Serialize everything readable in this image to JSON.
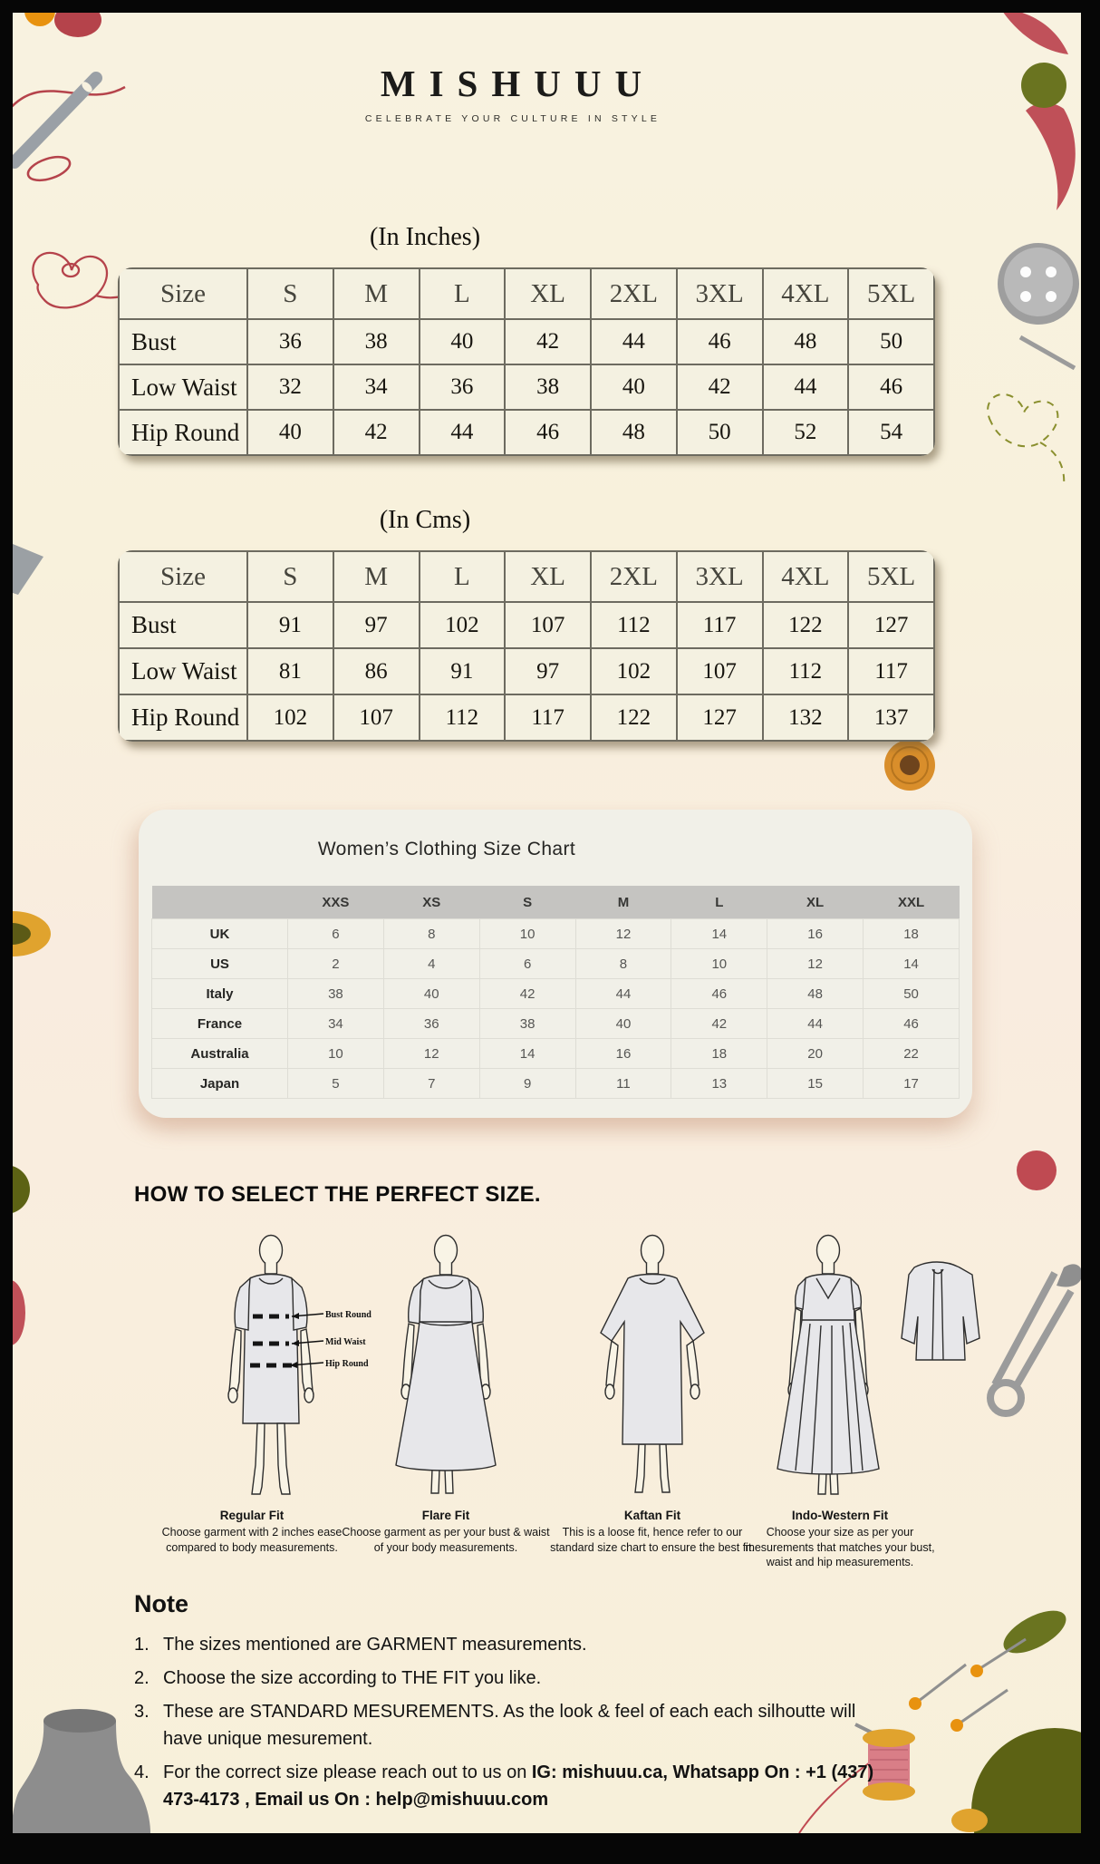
{
  "brand": {
    "name": "MISHUUU",
    "tagline": "CELEBRATE YOUR CULTURE IN STYLE"
  },
  "inches_table": {
    "title": "(In Inches)",
    "header": [
      "Size",
      "S",
      "M",
      "L",
      "XL",
      "2XL",
      "3XL",
      "4XL",
      "5XL"
    ],
    "rows": [
      {
        "label": "Bust",
        "values": [
          "36",
          "38",
          "40",
          "42",
          "44",
          "46",
          "48",
          "50"
        ]
      },
      {
        "label": "Low Waist",
        "values": [
          "32",
          "34",
          "36",
          "38",
          "40",
          "42",
          "44",
          "46"
        ]
      },
      {
        "label": "Hip Round",
        "values": [
          "40",
          "42",
          "44",
          "46",
          "48",
          "50",
          "52",
          "54"
        ]
      }
    ]
  },
  "cms_table": {
    "title": "(In Cms)",
    "header": [
      "Size",
      "S",
      "M",
      "L",
      "XL",
      "2XL",
      "3XL",
      "4XL",
      "5XL"
    ],
    "rows": [
      {
        "label": "Bust",
        "values": [
          "91",
          "97",
          "102",
          "107",
          "112",
          "117",
          "122",
          "127"
        ]
      },
      {
        "label": "Low Waist",
        "values": [
          "81",
          "86",
          "91",
          "97",
          "102",
          "107",
          "112",
          "117"
        ]
      },
      {
        "label": "Hip Round",
        "values": [
          "102",
          "107",
          "112",
          "117",
          "122",
          "127",
          "132",
          "137"
        ]
      }
    ]
  },
  "women_chart": {
    "title": "Women’s Clothing Size Chart",
    "header": [
      "",
      "XXS",
      "XS",
      "S",
      "M",
      "L",
      "XL",
      "XXL"
    ],
    "rows": [
      {
        "label": "UK",
        "values": [
          "6",
          "8",
          "10",
          "12",
          "14",
          "16",
          "18"
        ]
      },
      {
        "label": "US",
        "values": [
          "2",
          "4",
          "6",
          "8",
          "10",
          "12",
          "14"
        ]
      },
      {
        "label": "Italy",
        "values": [
          "38",
          "40",
          "42",
          "44",
          "46",
          "48",
          "50"
        ]
      },
      {
        "label": "France",
        "values": [
          "34",
          "36",
          "38",
          "40",
          "42",
          "44",
          "46"
        ]
      },
      {
        "label": "Australia",
        "values": [
          "10",
          "12",
          "14",
          "16",
          "18",
          "20",
          "22"
        ]
      },
      {
        "label": "Japan",
        "values": [
          "5",
          "7",
          "9",
          "11",
          "13",
          "15",
          "17"
        ]
      }
    ]
  },
  "fit_section": {
    "heading": "HOW TO SELECT THE PERFECT SIZE.",
    "annotations": [
      "Bust Round",
      "Mid Waist",
      "Hip Round"
    ],
    "fits": [
      {
        "name": "Regular Fit",
        "description": "Choose garment with 2 inches ease compared to body measurements."
      },
      {
        "name": "Flare Fit",
        "description": "Choose garment as per your bust & waist of your body measurements."
      },
      {
        "name": "Kaftan Fit",
        "description": "This is a loose fit, hence refer to our standard size chart to ensure the best fit."
      },
      {
        "name": "Indo-Western Fit",
        "description": "Choose your size as per your mesurements that matches your bust, waist and hip measurements."
      }
    ]
  },
  "note_section": {
    "heading": "Note",
    "items": [
      {
        "text": "The sizes mentioned are GARMENT measurements.",
        "bold": ""
      },
      {
        "text": "Choose the size according to THE FIT you like.",
        "bold": ""
      },
      {
        "text": "These are STANDARD MESUREMENTS. As the look & feel of each each silhoutte will have unique mesurement.",
        "bold": ""
      },
      {
        "text": "For the correct size please reach out to us on ",
        "bold": "IG: mishuuu.ca, Whatsapp On : +1 (437) 473-4173 , Email us On : help@mishuuu.com"
      }
    ]
  },
  "decorations": [
    "needle-and-thread",
    "heart-thread",
    "sewing-button",
    "dashed-thread-heart",
    "thread-spool-top",
    "olive-hat",
    "safety-pin",
    "pin-heads",
    "pink-thread-spool",
    "mannequin-bust",
    "thread-bottle"
  ],
  "colors": {
    "background_cream": "#f8f2e0",
    "frame_black": "#060606",
    "table_panel": "#f4f1e1",
    "table_grid": "#6d6b60",
    "card_gray": "#f1f0e8",
    "card_header_gray": "#c5c4c1",
    "accent_red": "#b5434b",
    "accent_orange": "#e8920f",
    "accent_olive": "#5c6214",
    "accent_gray": "#9b9b9b",
    "spool_pink": "#d97e87"
  }
}
